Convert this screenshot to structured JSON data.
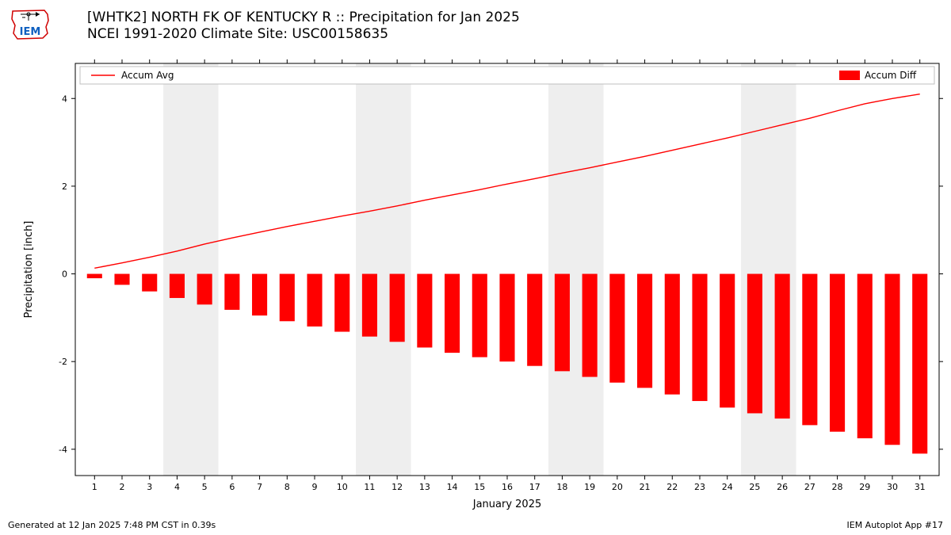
{
  "title_line1": "[WHTK2] NORTH FK OF KENTUCKY R :: Precipitation for Jan 2025",
  "title_line2": "NCEI 1991-2020 Climate Site: USC00158635",
  "footer_left": "Generated at 12 Jan 2025 7:48 PM CST in 0.39s",
  "footer_right": "IEM Autoplot App #17",
  "legend": {
    "line_label": "Accum Avg",
    "bar_label": "Accum Diff"
  },
  "chart": {
    "type": "combo-bar-line",
    "xlabel": "January 2025",
    "ylabel": "Precipitation [inch]",
    "xticks": [
      1,
      2,
      3,
      4,
      5,
      6,
      7,
      8,
      9,
      10,
      11,
      12,
      13,
      14,
      15,
      16,
      17,
      18,
      19,
      20,
      21,
      22,
      23,
      24,
      25,
      26,
      27,
      28,
      29,
      30,
      31
    ],
    "yticks": [
      -4,
      -2,
      0,
      2,
      4
    ],
    "ylim": [
      -4.6,
      4.8
    ],
    "xlim": [
      0.3,
      31.7
    ],
    "line_color": "#ff0000",
    "bar_color": "#ff0000",
    "weekend_band_color": "#eeeeee",
    "grid_color": "#ffffff",
    "axis_color": "#000000",
    "background_color": "#ffffff",
    "bar_width": 0.55,
    "line_width": 1.4,
    "weekend_bands": [
      [
        3.5,
        5.5
      ],
      [
        10.5,
        12.5
      ],
      [
        17.5,
        19.5
      ],
      [
        24.5,
        26.5
      ]
    ],
    "accum_avg": [
      0.13,
      0.25,
      0.38,
      0.52,
      0.68,
      0.82,
      0.95,
      1.08,
      1.2,
      1.32,
      1.43,
      1.55,
      1.68,
      1.8,
      1.92,
      2.05,
      2.17,
      2.3,
      2.42,
      2.55,
      2.68,
      2.82,
      2.96,
      3.1,
      3.25,
      3.4,
      3.55,
      3.72,
      3.88,
      4.0,
      4.1
    ],
    "accum_diff": [
      -0.1,
      -0.25,
      -0.4,
      -0.55,
      -0.7,
      -0.82,
      -0.95,
      -1.08,
      -1.2,
      -1.32,
      -1.43,
      -1.55,
      -1.68,
      -1.8,
      -1.9,
      -2.0,
      -2.1,
      -2.22,
      -2.35,
      -2.48,
      -2.6,
      -2.75,
      -2.9,
      -3.05,
      -3.18,
      -3.3,
      -3.45,
      -3.6,
      -3.75,
      -3.9,
      -4.1
    ],
    "title_fontsize": 17,
    "label_fontsize": 13,
    "tick_fontsize": 11
  }
}
